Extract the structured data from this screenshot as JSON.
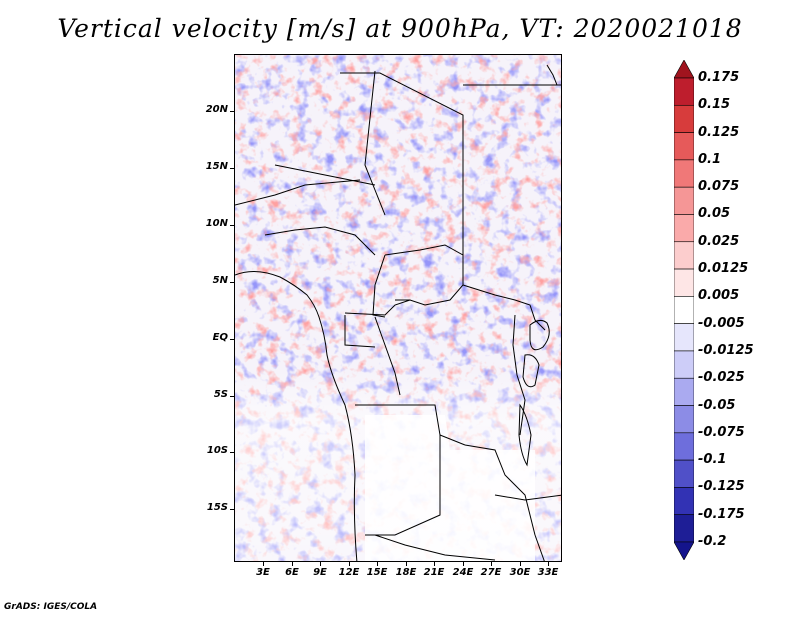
{
  "title": "Vertical velocity [m/s] at 900hPa, VT: 2020021018",
  "credit": "GrADS: IGES/COLA",
  "map": {
    "lat_labels": [
      "20N",
      "15N",
      "10N",
      "5N",
      "EQ",
      "5S",
      "10S",
      "15S"
    ],
    "lon_labels": [
      "3E",
      "6E",
      "9E",
      "12E",
      "15E",
      "18E",
      "21E",
      "24E",
      "27E",
      "30E",
      "33E"
    ],
    "lat_range": [
      -20,
      24.5
    ],
    "lon_range": [
      0.5,
      34
    ],
    "field": "vertical velocity",
    "units": "m/s",
    "level": "900hPa"
  },
  "colorbar": {
    "labels": [
      "0.175",
      "0.15",
      "0.125",
      "0.1",
      "0.075",
      "0.05",
      "0.025",
      "0.0125",
      "0.005",
      "-0.005",
      "-0.0125",
      "-0.025",
      "-0.05",
      "-0.075",
      "-0.1",
      "-0.125",
      "-0.175",
      "-0.2"
    ],
    "colors": [
      "#a0141e",
      "#be1e2d",
      "#d73c3c",
      "#e65a5a",
      "#f07878",
      "#f59696",
      "#faaaaa",
      "#fccdcd",
      "#fee6e6",
      "#ffffff",
      "#e6e6fc",
      "#cdcdf8",
      "#aaaaf0",
      "#8c8ce6",
      "#6e6edc",
      "#5050c8",
      "#3232b4",
      "#1e1e96",
      "#14148c"
    ]
  }
}
